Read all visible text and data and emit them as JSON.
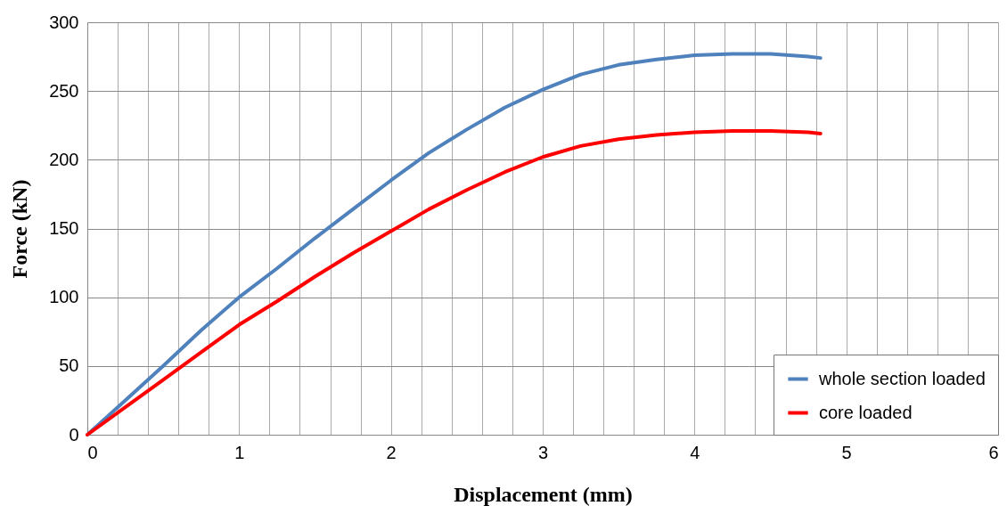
{
  "chart_data": {
    "type": "line",
    "xlabel": "Displacement (mm)",
    "ylabel": "Force (kN)",
    "x": [
      0,
      0.25,
      0.5,
      0.75,
      1,
      1.25,
      1.5,
      1.75,
      2,
      2.25,
      2.5,
      2.75,
      3,
      3.25,
      3.5,
      3.75,
      4,
      4.25,
      4.5,
      4.75,
      4.83
    ],
    "series": [
      {
        "name": "whole section loaded",
        "color": "#4f81bd",
        "values": [
          0,
          25,
          50,
          76,
          100,
          121,
          143,
          164,
          185,
          205,
          222,
          238,
          251,
          262,
          269,
          273,
          276,
          277,
          277,
          275,
          274
        ]
      },
      {
        "name": "core loaded",
        "color": "#ff0000",
        "values": [
          0,
          20,
          40,
          60,
          80,
          97,
          115,
          132,
          148,
          164,
          178,
          191,
          202,
          210,
          215,
          218,
          220,
          221,
          221,
          220,
          219
        ]
      }
    ],
    "xlim": [
      0,
      6
    ],
    "ylim": [
      0,
      300
    ],
    "xticks": [
      0,
      {
        "value": 0.2,
        "label": null
      },
      {
        "value": 0.4,
        "label": null
      },
      {
        "value": 0.6,
        "label": null
      },
      {
        "value": 0.8,
        "label": null
      },
      1,
      {
        "value": 1.2,
        "label": null
      },
      {
        "value": 1.4,
        "label": null
      },
      {
        "value": 1.6,
        "label": null
      },
      {
        "value": 1.8,
        "label": null
      },
      2,
      {
        "value": 2.2,
        "label": null
      },
      {
        "value": 2.4,
        "label": null
      },
      {
        "value": 2.6,
        "label": null
      },
      {
        "value": 2.8,
        "label": null
      },
      3,
      {
        "value": 3.2,
        "label": null
      },
      {
        "value": 3.4,
        "label": null
      },
      {
        "value": 3.6,
        "label": null
      },
      {
        "value": 3.8,
        "label": null
      },
      4,
      {
        "value": 4.2,
        "label": null
      },
      {
        "value": 4.4,
        "label": null
      },
      {
        "value": 4.6,
        "label": null
      },
      {
        "value": 4.8,
        "label": null
      },
      5,
      {
        "value": 5.2,
        "label": null
      },
      {
        "value": 5.4,
        "label": null
      },
      {
        "value": 5.6,
        "label": null
      },
      {
        "value": 5.8,
        "label": null
      },
      6
    ],
    "yticks": [
      0,
      50,
      100,
      150,
      200,
      250,
      300
    ],
    "grid": true,
    "legend": "bottom right",
    "marker": "none",
    "line_style": "solid"
  }
}
